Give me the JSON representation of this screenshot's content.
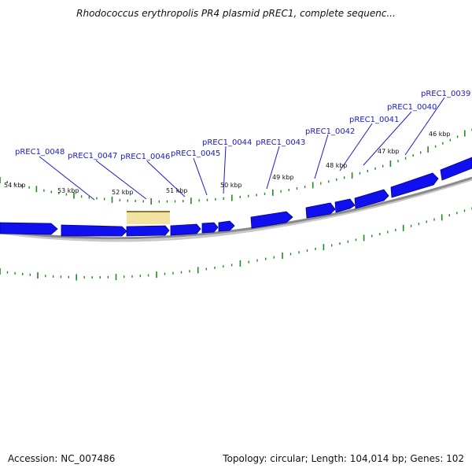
{
  "title": "Rhodococcus erythropolis PR4 plasmid pREC1, complete sequenc...",
  "footer": {
    "accession": "Accession: NC_007486",
    "summary": "Topology: circular; Length: 104,014 bp; Genes: 102"
  },
  "colors": {
    "gene_fill": "#1010ee",
    "gene_edge": "#000088",
    "backbone": "#8a8a8a",
    "tick": "#1f8a1f",
    "label": "#1a1acc",
    "highlight": "#f3e3a0"
  },
  "genes": [
    "pREC1_0048",
    "pREC1_0047",
    "pREC1_0046",
    "pREC1_0045",
    "pREC1_0044",
    "pREC1_0043",
    "pREC1_0042",
    "pREC1_0041",
    "pREC1_0040",
    "pREC1_0039"
  ],
  "kbp_labels": [
    "54 kbp",
    "53 kbp",
    "52 kbp",
    "51 kbp",
    "50 kbp",
    "49 kbp",
    "48 kbp",
    "47 kbp",
    "46 kbp"
  ]
}
